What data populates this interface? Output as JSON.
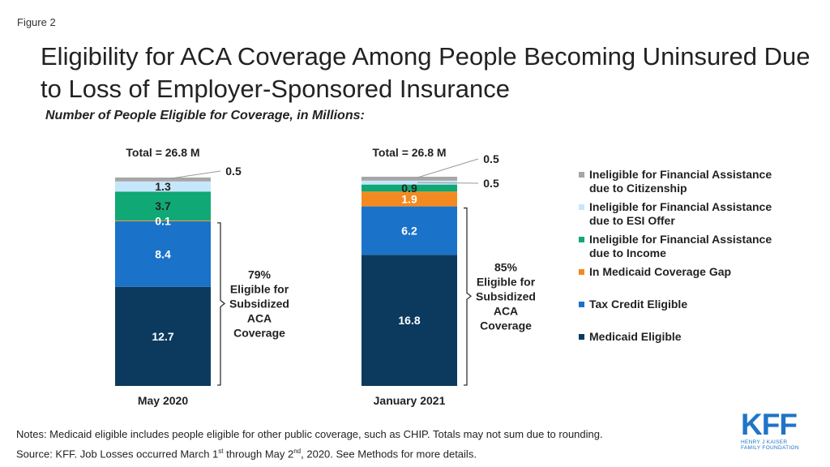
{
  "figure_label": "Figure 2",
  "title": "Eligibility for ACA Coverage Among People Becoming Uninsured Due to Loss of Employer-Sponsored Insurance",
  "subtitle": "Number of People Eligible for Coverage, in Millions:",
  "chart_data": {
    "type": "bar",
    "stacked": true,
    "categories": [
      "May 2020",
      "January 2021"
    ],
    "series": [
      {
        "name": "Medicaid Eligible",
        "values": [
          12.7,
          16.8
        ],
        "labels": [
          "12.7",
          "16.8"
        ],
        "color": "#0b3a5e"
      },
      {
        "name": "Tax Credit Eligible",
        "values": [
          8.4,
          6.2
        ],
        "labels": [
          "8.4",
          "6.2"
        ],
        "color": "#1a73c9"
      },
      {
        "name": "In Medicaid Coverage Gap",
        "values": [
          0.1,
          1.9
        ],
        "labels": [
          "0.1",
          "1.9"
        ],
        "color": "#f38a21"
      },
      {
        "name": "Ineligible for Financial Assistance due to Income",
        "values": [
          3.7,
          0.9
        ],
        "labels": [
          "3.7",
          "0.9"
        ],
        "color": "#10a874"
      },
      {
        "name": "Ineligible for Financial Assistance due to ESI Offer",
        "values": [
          1.3,
          0.5
        ],
        "labels": [
          "1.3",
          "0.5"
        ],
        "color": "#c6e6fb"
      },
      {
        "name": "Ineligible for Financial Assistance due to Citizenship",
        "values": [
          0.5,
          0.5
        ],
        "labels": [
          "0.5",
          "0.5"
        ],
        "color": "#a6a6a6"
      }
    ],
    "totals": [
      "Total = 26.8 M",
      "Total = 26.8 M"
    ],
    "bracket_pct": [
      "79%",
      "85%"
    ],
    "bracket_text": [
      "Eligible for",
      "Subsidized",
      "ACA",
      "Coverage"
    ],
    "ylim": [
      0,
      26.8
    ],
    "legend_position": "right"
  },
  "legend": [
    {
      "line1": "Ineligible for Financial Assistance",
      "line2": "due to Citizenship",
      "color": "#a6a6a6"
    },
    {
      "line1": "Ineligible for Financial Assistance",
      "line2": "due to ESI Offer",
      "color": "#c6e6fb"
    },
    {
      "line1": "Ineligible for Financial Assistance",
      "line2": "due to Income",
      "color": "#10a874"
    },
    {
      "line1": "In Medicaid Coverage Gap",
      "line2": "",
      "color": "#f38a21"
    },
    {
      "line1": "Tax Credit Eligible",
      "line2": "",
      "color": "#1a73c9"
    },
    {
      "line1": "Medicaid Eligible",
      "line2": "",
      "color": "#0b3a5e"
    }
  ],
  "notes": {
    "line1": "Notes: Medicaid eligible includes people eligible for other public coverage, such as CHIP. Totals may not sum due to rounding.",
    "source_a": "Source: KFF. Job Losses occurred March 1",
    "source_sup1": "st",
    "source_b": " through May 2",
    "source_sup2": "nd",
    "source_c": ", 2020. See Methods for more details."
  },
  "logo": {
    "mark": "KFF",
    "line1": "HENRY J KAISER",
    "line2": "FAMILY FOUNDATION"
  }
}
